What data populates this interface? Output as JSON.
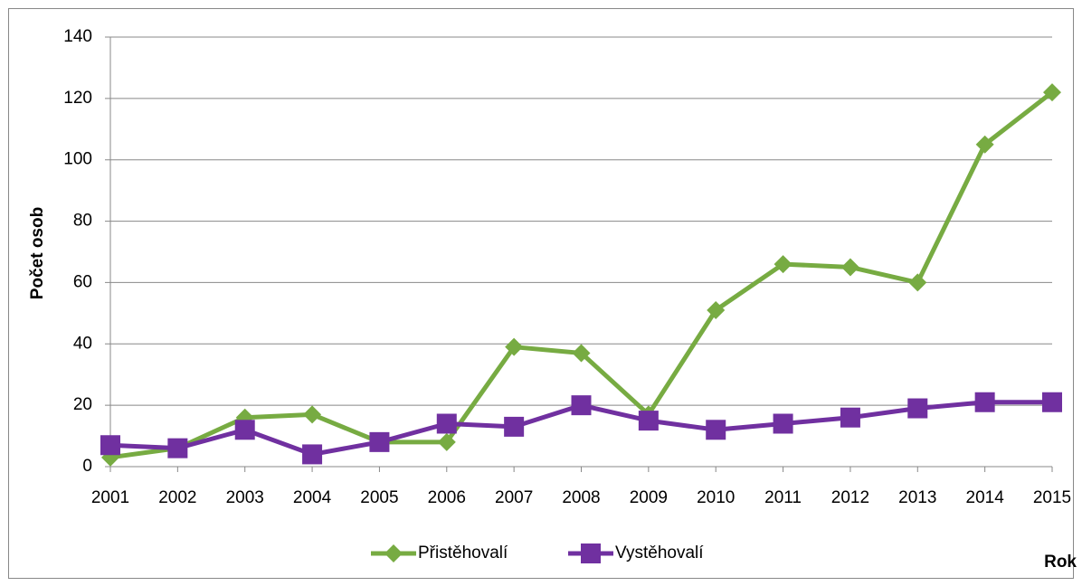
{
  "chart_data": {
    "type": "line",
    "x_label": "Rok",
    "y_label": "Počet osob",
    "categories": [
      "2001",
      "2002",
      "2003",
      "2004",
      "2005",
      "2006",
      "2007",
      "2008",
      "2009",
      "2010",
      "2011",
      "2012",
      "2013",
      "2014",
      "2015"
    ],
    "series": [
      {
        "name": "Přistěhovalí",
        "color": "#77ab42",
        "marker": "diamond",
        "values": [
          3,
          6,
          16,
          17,
          8,
          8,
          39,
          37,
          17,
          51,
          66,
          65,
          60,
          105,
          122
        ]
      },
      {
        "name": "Vystěhovalí",
        "color": "#7030a0",
        "marker": "square",
        "values": [
          7,
          6,
          12,
          4,
          8,
          14,
          13,
          20,
          15,
          12,
          14,
          16,
          19,
          21,
          21
        ]
      }
    ],
    "ylim": [
      0,
      140
    ],
    "yticks": [
      0,
      20,
      40,
      60,
      80,
      100,
      120,
      140
    ],
    "grid": true,
    "legend": "bottom"
  }
}
